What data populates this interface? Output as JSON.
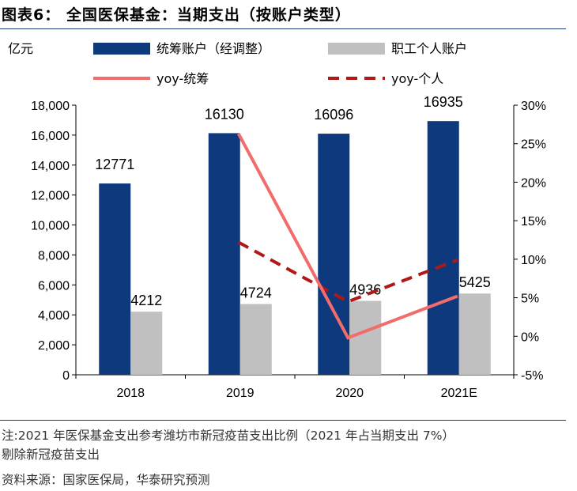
{
  "header": {
    "title": "图表6：  全国医保基金：当期支出（按账户类型）"
  },
  "notes": {
    "line1": "注:2021 年医保基金支出参考潍坊市新冠疫苗支出比例（2021 年占当期支出 7%）",
    "line2": "剔除新冠疫苗支出",
    "line3": "资料来源：国家医保局，华泰研究预测"
  },
  "colors": {
    "navy": "#0e3a7d",
    "gray": "#c0c0c0",
    "coral": "#f26c6c",
    "darkred": "#b01818"
  },
  "chart_data": {
    "type": "bar",
    "unit_label": "亿元",
    "categories": [
      "2018",
      "2019",
      "2020",
      "2021E"
    ],
    "series": [
      {
        "name": "统筹账户（经调整）",
        "kind": "bar",
        "axis": "left",
        "values": [
          12771,
          16130,
          16096,
          16935
        ]
      },
      {
        "name": "职工个人账户",
        "kind": "bar",
        "axis": "left",
        "values": [
          4212,
          4724,
          4936,
          5425
        ]
      },
      {
        "name": "yoy-统筹",
        "kind": "line",
        "axis": "right",
        "values": [
          null,
          26.3,
          -0.2,
          5.2
        ]
      },
      {
        "name": "yoy-个人",
        "kind": "dashed-line",
        "axis": "right",
        "values": [
          null,
          12.2,
          4.5,
          9.9
        ]
      }
    ],
    "y_left": {
      "ylim": [
        0,
        18000
      ],
      "ticks": [
        "0",
        "2,000",
        "4,000",
        "6,000",
        "8,000",
        "10,000",
        "12,000",
        "14,000",
        "16,000",
        "18,000"
      ]
    },
    "y_right": {
      "ylim": [
        -5,
        30
      ],
      "ticks": [
        "-5%",
        "0%",
        "5%",
        "10%",
        "15%",
        "20%",
        "25%",
        "30%"
      ]
    },
    "legend_position": "top",
    "grid": false
  }
}
